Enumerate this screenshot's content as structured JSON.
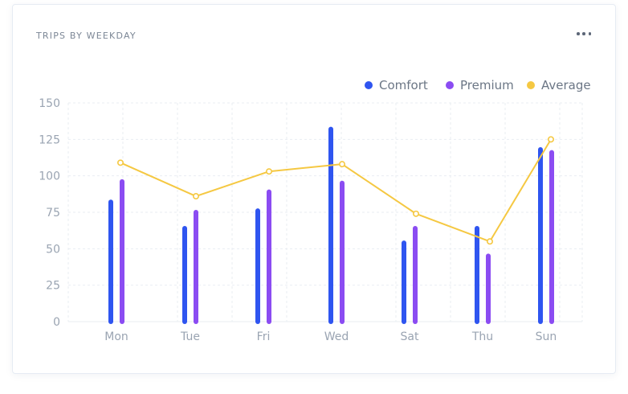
{
  "card": {
    "title": "TRIPS BY WEEKDAY",
    "menu_icon": "more-horizontal-icon"
  },
  "colors": {
    "comfort": "#2f55f0",
    "premium": "#8b4cf2",
    "average": "#f5c842",
    "grid": "#e9edf2",
    "tick": "#9aa4b2"
  },
  "chart_data": {
    "type": "bar",
    "title": "TRIPS BY WEEKDAY",
    "categories": [
      "Mon",
      "Tue",
      "Fri",
      "Wed",
      "Sat",
      "Thu",
      "Sun"
    ],
    "series": [
      {
        "name": "Comfort",
        "type": "bar",
        "color": "#2f55f0",
        "values": [
          82,
          64,
          76,
          132,
          54,
          64,
          118
        ]
      },
      {
        "name": "Premium",
        "type": "bar",
        "color": "#8b4cf2",
        "values": [
          96,
          75,
          89,
          95,
          64,
          45,
          116
        ]
      },
      {
        "name": "Average",
        "type": "line",
        "color": "#f5c842",
        "values": [
          109,
          86,
          103,
          108,
          74,
          55,
          125
        ]
      }
    ],
    "ylim": [
      0,
      150
    ],
    "yticks": [
      0,
      25,
      50,
      75,
      100,
      125,
      150
    ],
    "grid": true,
    "legend": "top-right"
  }
}
